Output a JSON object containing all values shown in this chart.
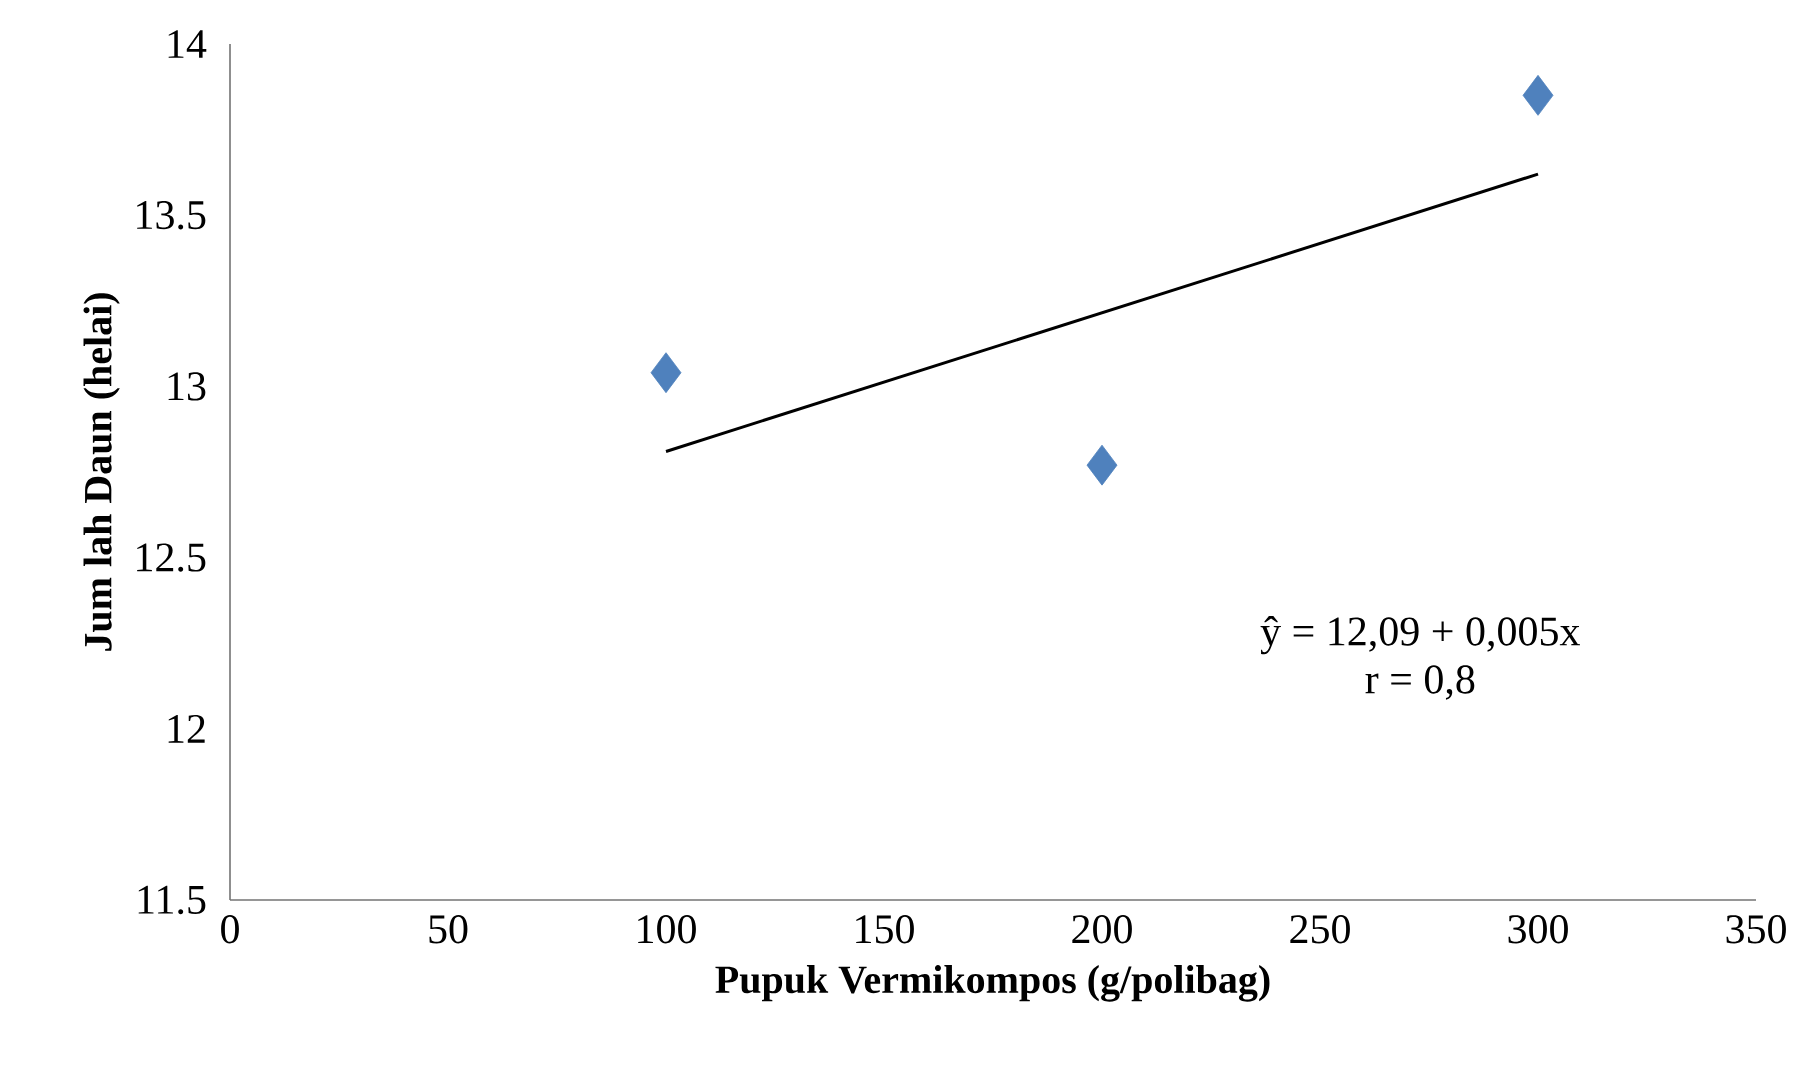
{
  "chart_data": {
    "type": "scatter",
    "xlabel": "Pupuk Vermikompos (g/polibag)",
    "ylabel": "Jum lah Daun (helai)",
    "series": [
      {
        "color": "#4f81bd",
        "marker": "diamond",
        "x": [
          100,
          200,
          300
        ],
        "values": [
          13.04,
          12.77,
          13.85
        ]
      },
      {
        "type": "line",
        "color": "#000000",
        "marker": "none",
        "x": [
          100,
          300
        ],
        "values": [
          12.81,
          13.62
        ]
      }
    ],
    "annotations": [
      "ŷ = 12,09 + 0,005x",
      "r = 0,8"
    ],
    "xlim": [
      0,
      350
    ],
    "xticks": [
      0,
      50,
      100,
      150,
      200,
      250,
      300,
      350
    ],
    "ylim": [
      11.5,
      14
    ],
    "yticks": [
      11.5,
      12,
      12.5,
      13,
      13.5,
      14
    ],
    "grid": false
  }
}
